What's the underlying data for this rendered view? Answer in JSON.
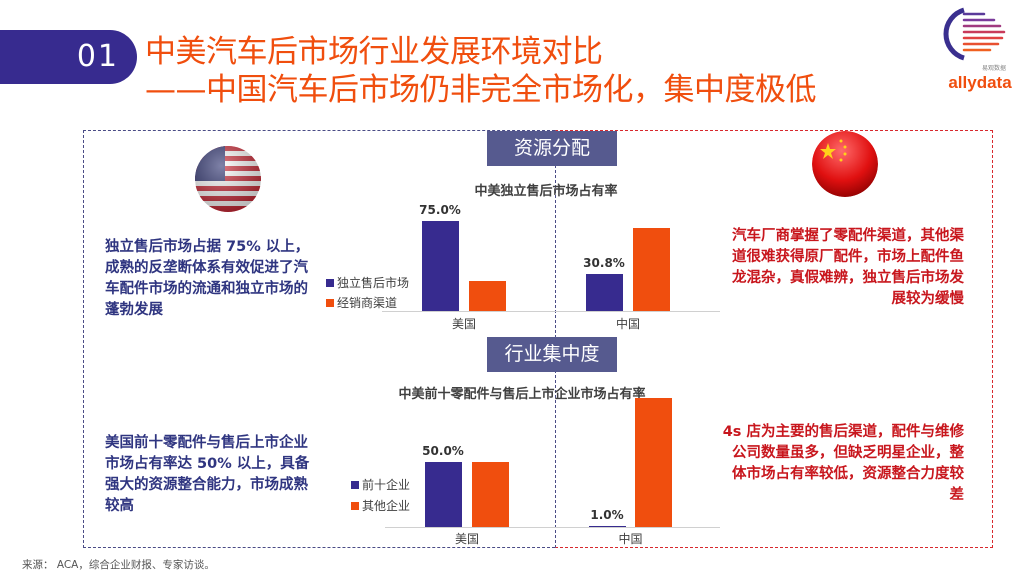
{
  "header": {
    "number": "01",
    "title_line1": "中美汽车后市场行业发展环境对比",
    "title_line2": "——中国汽车后市场仍非完全市场化，集中度极低"
  },
  "logo": {
    "text": "allydata",
    "subtext": "易观数据"
  },
  "sections": [
    {
      "banner": "资源分配",
      "left_text": "独立售后市场占据 75% 以上，成熟的反垄断体系有效促进了汽车配件市场的流通和独立市场的蓬勃发展",
      "right_text": "汽车厂商掌握了零配件渠道，其他渠道很难获得原厂配件，市场上配件鱼龙混杂，真假难辨，独立售后市场发展较为缓慢"
    },
    {
      "banner": "行业集中度",
      "left_text": "美国前十零配件与售后上市企业市场占有率达 50% 以上，具备强大的资源整合能力，市场成熟较高",
      "right_text": "4s 店为主要的售后渠道，配件与维修公司数量虽多，但缺乏明星企业，整体市场占有率较低，资源整合力度较差"
    }
  ],
  "colors": {
    "navy": "#372b8f",
    "orange": "#f04e0e",
    "red_text": "#c8161d",
    "banner": "#565a8f"
  },
  "chart_data": [
    {
      "type": "bar",
      "title": "中美独立售后市场占有率",
      "categories": [
        "美国",
        "中国"
      ],
      "series": [
        {
          "name": "独立售后市场",
          "values": [
            75.0,
            30.8
          ],
          "labels": [
            "75.0%",
            "30.8%"
          ],
          "color": "#372b8f"
        },
        {
          "name": "经销商渠道",
          "values": [
            25.0,
            69.2
          ],
          "labels": [
            null,
            null
          ],
          "color": "#f04e0e"
        }
      ],
      "ylim": [
        0,
        100
      ],
      "grid": false,
      "legend": "left"
    },
    {
      "type": "bar",
      "title": "中美前十零配件与售后上市企业市场占有率",
      "categories": [
        "美国",
        "中国"
      ],
      "series": [
        {
          "name": "前十企业",
          "values": [
            50.0,
            1.0
          ],
          "labels": [
            "50.0%",
            "1.0%"
          ],
          "color": "#372b8f"
        },
        {
          "name": "其他企业",
          "values": [
            50.0,
            99.0
          ],
          "labels": [
            null,
            null
          ],
          "color": "#f04e0e"
        }
      ],
      "ylim": [
        0,
        100
      ],
      "grid": false,
      "legend": "left"
    }
  ],
  "footer": {
    "source": "来源： ACA，综合企业财报、专家访谈。"
  }
}
